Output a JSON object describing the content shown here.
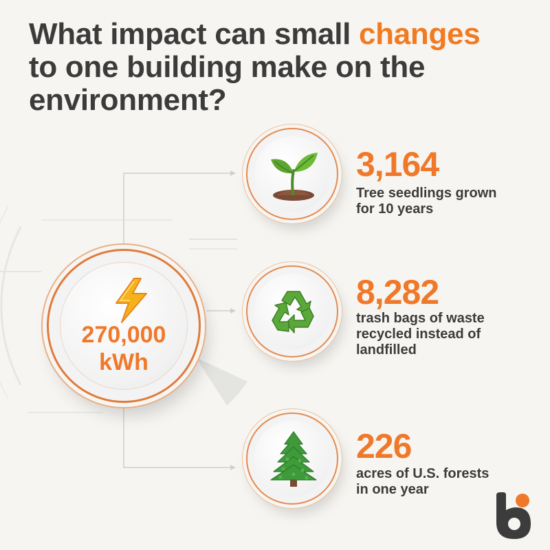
{
  "title": {
    "part1": "What impact can small ",
    "accent": "changes",
    "part2": " to one building make on the environment?"
  },
  "hub": {
    "icon": "lightning-bolt-icon",
    "value_line1": "270,000",
    "value_line2": "kWh"
  },
  "stats": [
    {
      "icon": "seedling-icon",
      "number": "3,164",
      "caption_line1": "Tree seedlings grown",
      "caption_line2": "for 10 years"
    },
    {
      "icon": "recycle-icon",
      "number": "8,282",
      "caption_line1": "trash bags of waste",
      "caption_line2": "recycled instead of",
      "caption_line3": "landfilled"
    },
    {
      "icon": "evergreen-tree-icon",
      "number": "226",
      "caption_line1": "acres of U.S. forests",
      "caption_line2": "in one year"
    }
  ],
  "colors": {
    "accent": "#f0782a",
    "text": "#3b3b3b",
    "background": "#f6f5f1"
  },
  "logo": {
    "icon": "brand-b-logo"
  }
}
